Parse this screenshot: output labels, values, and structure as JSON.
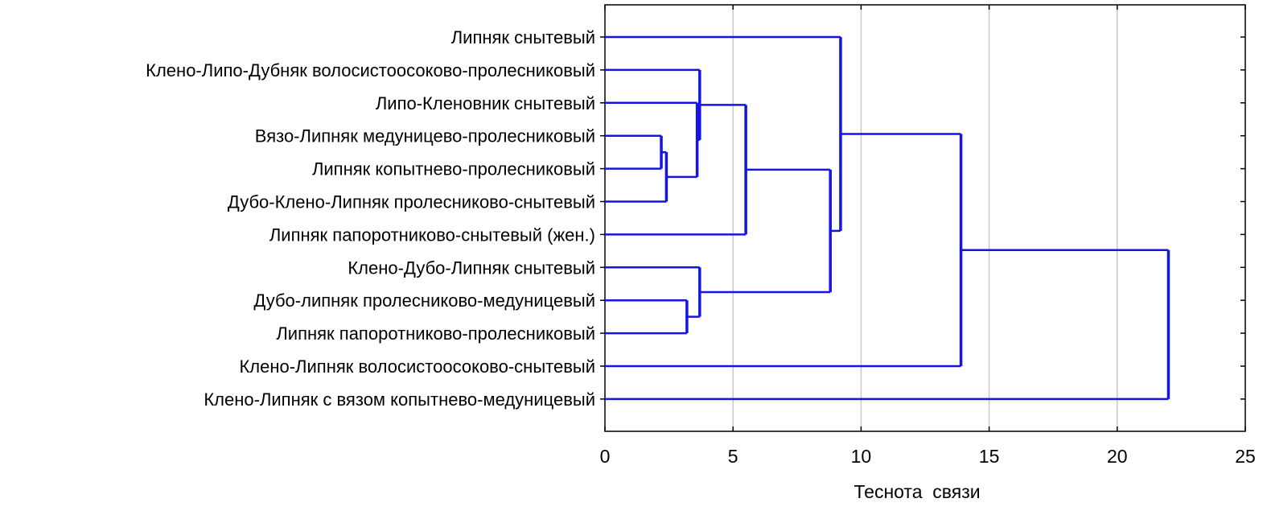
{
  "chart_data": {
    "type": "dendrogram",
    "orientation": "horizontal",
    "title": "",
    "xlabel": "Теснота  связи",
    "ylabel": "",
    "xlim": [
      0,
      25
    ],
    "x_ticks": [
      0,
      5,
      10,
      15,
      20,
      25
    ],
    "grid": true,
    "line_color": "#1414e6",
    "grid_color": "#c8c8c8",
    "leaves": [
      "Липняк снытевый",
      "Клено-Липо-Дубняк волосистоосоково-пролесниковый",
      "Липо-Кленовник снытевый",
      "Вязо-Липняк медуницево-пролесниковый",
      "Липняк копытнево-пролесниковый",
      "Дубо-Клено-Липняк пролесниково-снытевый",
      "Липняк папоротниково-снытевый (жен.)",
      "Клено-Дубо-Липняк снытевый",
      "Дубо-липняк пролесниково-медуницевый",
      "Липняк папоротниково-пролесниковый",
      "Клено-Липняк волосистоосоково-снытевый",
      "Клено-Липняк с вязом копытнево-медуницевый"
    ],
    "merges": [
      {
        "a": "L3",
        "b": "L4",
        "height": 2.2,
        "id": "N1"
      },
      {
        "a": "N1",
        "b": "L5",
        "height": 2.4,
        "id": "N2"
      },
      {
        "a": "L8",
        "b": "L9",
        "height": 3.2,
        "id": "N3"
      },
      {
        "a": "L2",
        "b": "N2",
        "height": 3.6,
        "id": "N4"
      },
      {
        "a": "L7",
        "b": "N3",
        "height": 3.7,
        "id": "N5"
      },
      {
        "a": "L1",
        "b": "N4",
        "height": 3.7,
        "id": "N6"
      },
      {
        "a": "N6",
        "b": "L6",
        "height": 5.5,
        "id": "N7"
      },
      {
        "a": "N7",
        "b": "N5",
        "height": 8.8,
        "id": "N8"
      },
      {
        "a": "L0",
        "b": "N8",
        "height": 9.2,
        "id": "N9"
      },
      {
        "a": "N9",
        "b": "L10",
        "height": 13.9,
        "id": "N10"
      },
      {
        "a": "N10",
        "b": "L11",
        "height": 22.0,
        "id": "N11"
      }
    ]
  }
}
